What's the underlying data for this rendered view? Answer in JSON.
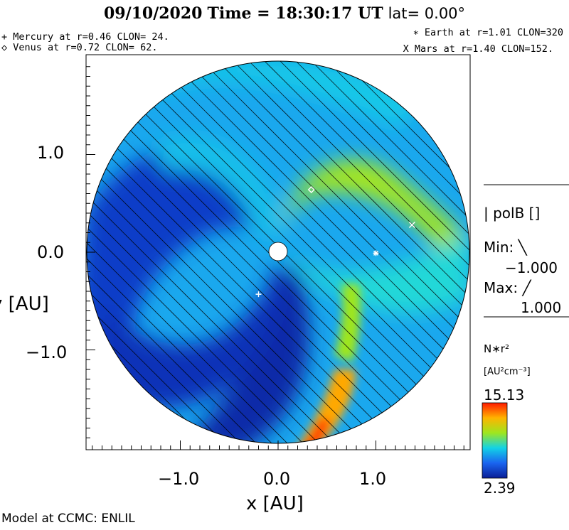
{
  "header": {
    "date": "09/10/2020",
    "time_label": "Time",
    "time_value": "18:30:17 UT",
    "lat_label": "lat= 0.00°"
  },
  "planets": {
    "mercury": "+ Mercury at r=0.46 CLON= 24.",
    "venus": "◇ Venus at r=0.72 CLON= 62.",
    "earth": "∗ Earth at  r=1.01 CLON=320",
    "mars": "X Mars at r=1.40 CLON=152."
  },
  "colors": {
    "low": "#0a1e96",
    "mid": "#12d2e6",
    "high": "#ff1a00",
    "hatch": "#000000"
  },
  "chart_data": {
    "type": "heatmap",
    "title": "09/10/2020 Time = 18:30:17 UT lat= 0.00°",
    "xlabel": "x [AU]",
    "ylabel": "y [AU]",
    "xlim": [
      -2.0,
      2.0
    ],
    "ylim": [
      -2.0,
      2.0
    ],
    "x_ticks": [
      "−1.0",
      "0.0",
      "1.0"
    ],
    "y_ticks": [
      "1.0",
      "0.0",
      "−1.0"
    ],
    "x_tick_values": [
      -1.0,
      0.0,
      1.0
    ],
    "y_tick_values": [
      1.0,
      0.0,
      -1.0
    ],
    "colorbar": {
      "label": "N∗r²",
      "units": "[AU²cm⁻³]",
      "max_label": "15.13",
      "min_label": "2.39",
      "max": 15.13,
      "min": 2.39
    },
    "polarity": {
      "title": "polB []",
      "min_label": "Min: ╲",
      "min_value": "−1.000",
      "max_label": "Max: ╱",
      "max_value": "1.000"
    },
    "markers": [
      {
        "name": "Mercury",
        "symbol": "+",
        "x": -0.2,
        "y": -0.43
      },
      {
        "name": "Venus",
        "symbol": "◇",
        "x": 0.34,
        "y": 0.64
      },
      {
        "name": "Earth",
        "symbol": "∗",
        "x": 1.0,
        "y": -0.01
      },
      {
        "name": "Mars",
        "symbol": "×",
        "x": 1.37,
        "y": 0.28
      }
    ]
  },
  "footer": "Model at CCMC: ENLIL"
}
